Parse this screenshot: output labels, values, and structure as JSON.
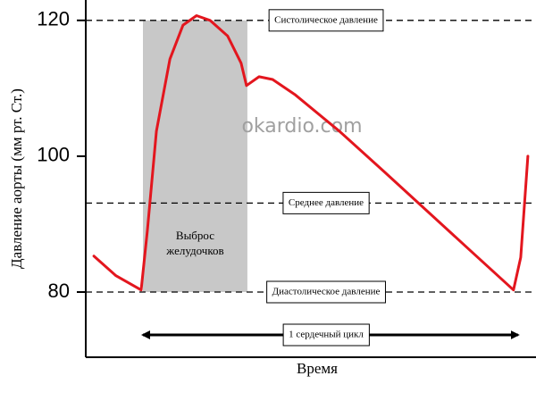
{
  "chart_data": {
    "type": "line",
    "ylabel": "Давление аорты (мм рт. Ст.)",
    "xlabel": "Время",
    "watermark": "okardio.com",
    "x": [
      1.8,
      6.7,
      12.3,
      13.7,
      15.7,
      18.7,
      21.6,
      24.6,
      27.6,
      31.5,
      34.5,
      35.7,
      38.5,
      41.5,
      46.4,
      56.3,
      66.3,
      76.2,
      86.1,
      95.0,
      96.6,
      98.2
    ],
    "values": [
      85.3,
      82.4,
      80.3,
      89.1,
      103.7,
      114.3,
      119.3,
      120.7,
      120.0,
      117.7,
      113.7,
      110.4,
      111.7,
      111.3,
      109.1,
      103.7,
      97.7,
      91.7,
      85.7,
      80.3,
      85.1,
      100.0
    ],
    "color": "#e3161e",
    "xlim": [
      0,
      100
    ],
    "ylim": [
      70.4,
      123
    ],
    "yticks": [
      80,
      100,
      120
    ],
    "reference_lines": [
      {
        "value": 120,
        "label": "Систолическое давление"
      },
      {
        "value": 93.1,
        "label": "Среднее давление"
      },
      {
        "value": 80,
        "label": "Диастолическое давление"
      }
    ],
    "shaded_region": {
      "x": [
        12.7,
        35.9
      ],
      "y": [
        80,
        120
      ],
      "label": [
        "Выброс",
        "желудочков"
      ],
      "color": "#c8c8c8"
    },
    "span_arrow": {
      "x": [
        12.7,
        96.0
      ],
      "label": "1 сердечный цикл"
    }
  }
}
